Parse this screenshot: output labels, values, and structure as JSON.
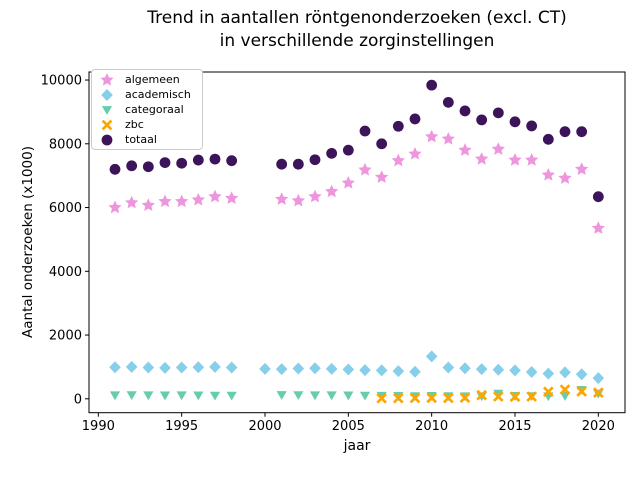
{
  "chart_data": {
    "type": "scatter",
    "title": "Trend in aantallen röntgenonderzoeken (excl. CT)\nin verschillende zorginstellingen",
    "title_lines": [
      "Trend in aantallen röntgenonderzoeken (excl. CT)",
      "in verschillende zorginstellingen"
    ],
    "xlabel": "jaar",
    "ylabel": "Aantal onderzoeken (x1000)",
    "xticks": [
      1990,
      1995,
      2000,
      2005,
      2010,
      2015,
      2020
    ],
    "yticks": [
      0,
      2000,
      4000,
      6000,
      8000,
      10000
    ],
    "xlim": [
      1989.44,
      2021.6
    ],
    "ylim": [
      -436,
      10252
    ],
    "grid": false,
    "legend_position": "upper-left",
    "series": [
      {
        "name": "algemeen",
        "marker": "star",
        "color": "#ee96dd",
        "x": [
          1991,
          1992,
          1993,
          1994,
          1995,
          1996,
          1997,
          1998,
          2001,
          2002,
          2003,
          2004,
          2005,
          2006,
          2007,
          2008,
          2009,
          2010,
          2011,
          2012,
          2013,
          2014,
          2015,
          2016,
          2017,
          2018,
          2019,
          2020
        ],
        "y": [
          6000,
          6150,
          6070,
          6190,
          6190,
          6240,
          6340,
          6290,
          6260,
          6210,
          6340,
          6500,
          6770,
          7180,
          6950,
          7470,
          7680,
          8220,
          8150,
          7800,
          7520,
          7830,
          7490,
          7490,
          7020,
          6920,
          7200,
          5350
        ]
      },
      {
        "name": "academisch",
        "marker": "diamond",
        "color": "#87ceeb",
        "x": [
          1991,
          1992,
          1993,
          1994,
          1995,
          1996,
          1997,
          1998,
          2000,
          2001,
          2002,
          2003,
          2004,
          2005,
          2006,
          2007,
          2008,
          2009,
          2010,
          2011,
          2012,
          2013,
          2014,
          2015,
          2016,
          2017,
          2018,
          2019,
          2020
        ],
        "y": [
          990,
          1000,
          980,
          970,
          980,
          990,
          1000,
          980,
          940,
          930,
          950,
          960,
          940,
          920,
          900,
          890,
          870,
          850,
          1330,
          980,
          960,
          930,
          910,
          890,
          840,
          790,
          830,
          770,
          650
        ]
      },
      {
        "name": "categoraal",
        "marker": "triangle-down",
        "color": "#66cdaa",
        "x": [
          1991,
          1992,
          1993,
          1994,
          1995,
          1996,
          1997,
          1998,
          2001,
          2002,
          2003,
          2004,
          2005,
          2006,
          2007,
          2008,
          2009,
          2010,
          2011,
          2012,
          2013,
          2014,
          2015,
          2016,
          2017,
          2018,
          2019,
          2020
        ],
        "y": [
          110,
          115,
          110,
          105,
          110,
          105,
          100,
          100,
          120,
          115,
          110,
          110,
          105,
          100,
          95,
          90,
          85,
          90,
          85,
          80,
          80,
          160,
          90,
          85,
          80,
          90,
          280,
          160
        ]
      },
      {
        "name": "zbc",
        "marker": "x",
        "color": "#ffa500",
        "x": [
          2007,
          2008,
          2009,
          2010,
          2011,
          2012,
          2013,
          2014,
          2015,
          2016,
          2017,
          2018,
          2019,
          2020
        ],
        "y": [
          15,
          20,
          25,
          30,
          25,
          35,
          115,
          70,
          65,
          70,
          220,
          290,
          230,
          195
        ]
      },
      {
        "name": "totaal",
        "marker": "circle",
        "color": "#3d1459",
        "x": [
          1991,
          1992,
          1993,
          1994,
          1995,
          1996,
          1997,
          1998,
          2001,
          2002,
          2003,
          2004,
          2005,
          2006,
          2007,
          2008,
          2009,
          2010,
          2011,
          2012,
          2013,
          2014,
          2015,
          2016,
          2017,
          2018,
          2019,
          2020
        ],
        "y": [
          7200,
          7310,
          7280,
          7410,
          7390,
          7490,
          7520,
          7470,
          7360,
          7360,
          7500,
          7700,
          7800,
          8400,
          8000,
          8550,
          8780,
          9840,
          9300,
          9030,
          8750,
          8970,
          8690,
          8560,
          8140,
          8380,
          8380,
          6340
        ]
      }
    ]
  }
}
